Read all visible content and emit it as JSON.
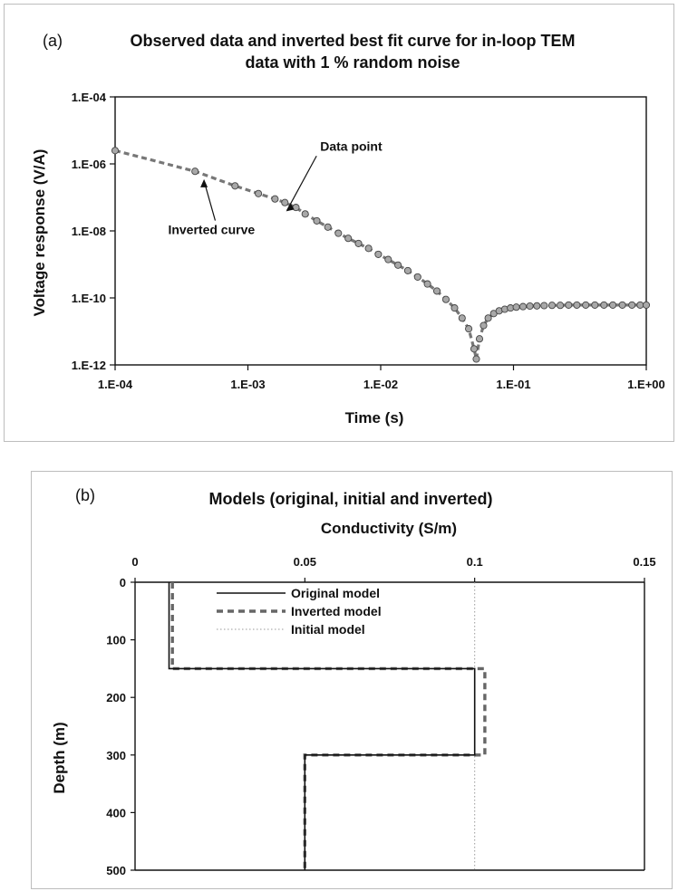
{
  "chart_data": [
    {
      "type": "scatter",
      "panel_label": "(a)",
      "title": "Observed data and inverted best fit curve for in-loop TEM data with 1 % random noise",
      "title_lines": [
        "Observed data and inverted best fit curve for in-loop TEM",
        "data with 1 % random noise"
      ],
      "xlabel": "Time (s)",
      "ylabel": "Voltage response (V/A)",
      "xscale": "log",
      "yscale": "log",
      "xlim": [
        0.0001,
        1
      ],
      "ylim": [
        1e-12,
        0.0001
      ],
      "x_ticks": [
        "1.E-04",
        "1.E-03",
        "1.E-02",
        "1.E-01",
        "1.E+00"
      ],
      "y_ticks": [
        "1.E-04",
        "1.E-06",
        "1.E-08",
        "1.E-10",
        "1.E-12"
      ],
      "grid": false,
      "annotations": [
        {
          "text": "Data point",
          "x": 0.0035,
          "y": 2.5e-06
        },
        {
          "text": "Inverted curve",
          "x": 0.00055,
          "y": 8e-09
        }
      ],
      "series": [
        {
          "style": "dots",
          "x": [
            0.0001,
            0.0004,
            0.0008,
            0.0012,
            0.0016,
            0.0019,
            0.0023,
            0.0027,
            0.0033,
            0.004,
            0.0048,
            0.0057,
            0.0068,
            0.0081,
            0.0096,
            0.0114,
            0.0135,
            0.016,
            0.019,
            0.0225,
            0.0265,
            0.031,
            0.036,
            0.041,
            0.046,
            0.0505,
            0.0525,
            0.0555,
            0.0595,
            0.0645,
            0.071,
            0.078,
            0.086,
            0.095,
            0.105,
            0.118,
            0.133,
            0.15,
            0.17,
            0.195,
            0.225,
            0.26,
            0.3,
            0.35,
            0.41,
            0.48,
            0.56,
            0.66,
            0.78,
            0.9,
            1.0
          ],
          "y": [
            2.5e-06,
            6e-07,
            2.2e-07,
            1.3e-07,
            9e-08,
            7e-08,
            5e-08,
            3.2e-08,
            2e-08,
            1.3e-08,
            8.5e-09,
            6e-09,
            4.2e-09,
            3e-09,
            2e-09,
            1.4e-09,
            9.5e-10,
            6.5e-10,
            4.2e-10,
            2.6e-10,
            1.6e-10,
            9e-11,
            5e-11,
            2.5e-11,
            1.2e-11,
            3e-12,
            1.5e-12,
            6e-12,
            1.5e-11,
            2.5e-11,
            3.4e-11,
            4.1e-11,
            4.6e-11,
            5e-11,
            5.3e-11,
            5.5e-11,
            5.7e-11,
            5.8e-11,
            5.9e-11,
            6e-11,
            6e-11,
            6.1e-11,
            6.1e-11,
            6.1e-11,
            6.1e-11,
            6.1e-11,
            6.1e-11,
            6.1e-11,
            6.1e-11,
            6.1e-11,
            6.1e-11
          ]
        },
        {
          "style": "dashed",
          "x": [
            0.0001,
            0.0004,
            0.0008,
            0.0012,
            0.0016,
            0.0019,
            0.0023,
            0.0027,
            0.0033,
            0.004,
            0.0048,
            0.0057,
            0.0068,
            0.0081,
            0.0096,
            0.0114,
            0.0135,
            0.016,
            0.019,
            0.0225,
            0.0265,
            0.031,
            0.036,
            0.041,
            0.046,
            0.0505,
            0.0525,
            0.0555,
            0.0595,
            0.0645,
            0.071,
            0.078,
            0.086,
            0.095,
            0.105,
            0.118,
            0.133,
            0.15,
            0.17,
            0.195,
            0.225,
            0.26,
            0.3,
            0.35,
            0.41,
            0.48,
            0.56,
            0.66,
            0.78,
            0.9,
            1.0
          ],
          "y": [
            2.5e-06,
            6e-07,
            2.2e-07,
            1.3e-07,
            9e-08,
            7e-08,
            5e-08,
            3.2e-08,
            2e-08,
            1.3e-08,
            8.5e-09,
            6e-09,
            4.2e-09,
            3e-09,
            2e-09,
            1.4e-09,
            9.5e-10,
            6.5e-10,
            4.2e-10,
            2.6e-10,
            1.6e-10,
            9e-11,
            5e-11,
            2.5e-11,
            1.2e-11,
            3e-12,
            1.5e-12,
            6e-12,
            1.5e-11,
            2.5e-11,
            3.4e-11,
            4.1e-11,
            4.6e-11,
            5e-11,
            5.3e-11,
            5.5e-11,
            5.7e-11,
            5.8e-11,
            5.9e-11,
            6e-11,
            6e-11,
            6.1e-11,
            6.1e-11,
            6.1e-11,
            6.1e-11,
            6.1e-11,
            6.1e-11,
            6.1e-11,
            6.1e-11,
            6.1e-11,
            6.1e-11
          ]
        }
      ],
      "colors": {
        "dot_fill": "#a8a8a8",
        "dot_stroke": "#444444",
        "curve": "#777777"
      }
    },
    {
      "type": "line",
      "panel_label": "(b)",
      "title": "Models (original, initial and inverted)",
      "xlabel": "Conductivity (S/m)",
      "ylabel": "Depth (m)",
      "xlim": [
        0,
        0.15
      ],
      "ylim": [
        0,
        500
      ],
      "y_inverted": true,
      "x_axis_position": "top",
      "x_ticks": [
        "0",
        "0.05",
        "0.1",
        "0.15"
      ],
      "y_ticks": [
        "0",
        "100",
        "200",
        "300",
        "400",
        "500"
      ],
      "grid": false,
      "legend_position": "top-left",
      "series": [
        {
          "name": "Original model",
          "style": "solid",
          "x": [
            0.01,
            0.01,
            0.1,
            0.1,
            0.05,
            0.05
          ],
          "y": [
            0,
            150,
            150,
            300,
            300,
            500
          ]
        },
        {
          "name": "Inverted model",
          "style": "dashed",
          "x": [
            0.011,
            0.011,
            0.103,
            0.103,
            0.05,
            0.05
          ],
          "y": [
            0,
            150,
            150,
            300,
            300,
            500
          ]
        },
        {
          "name": "Initial model",
          "style": "dotted",
          "x": [
            0.1,
            0.1
          ],
          "y": [
            0,
            500
          ]
        }
      ],
      "colors": {
        "original": "#111111",
        "inverted": "#666666",
        "initial": "#999999"
      }
    }
  ]
}
